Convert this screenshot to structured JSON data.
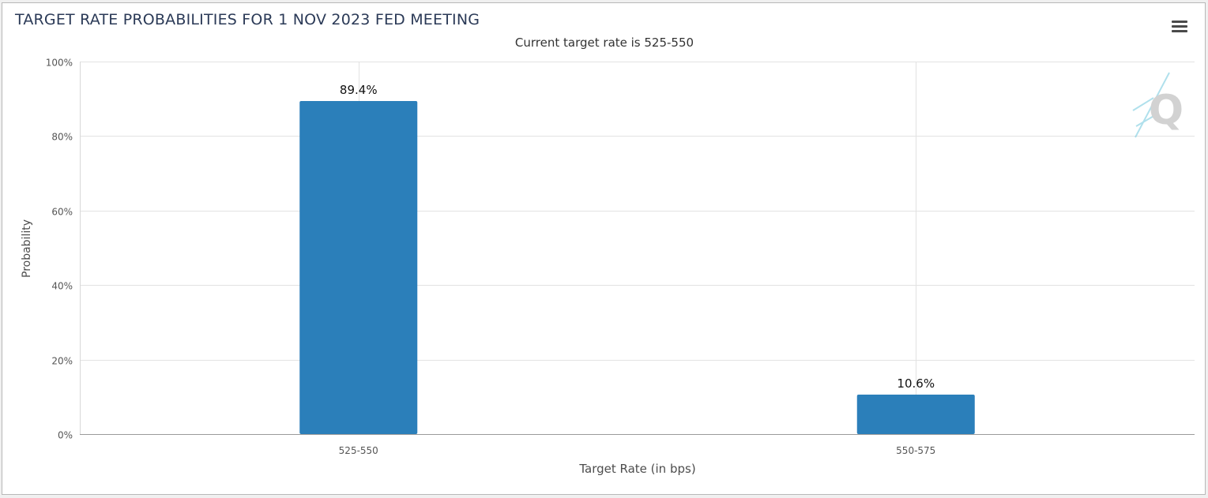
{
  "chart_data": {
    "type": "bar",
    "title": "TARGET RATE PROBABILITIES FOR 1 NOV 2023 FED MEETING",
    "subtitle": "Current target rate is 525-550",
    "xlabel": "Target Rate (in bps)",
    "ylabel": "Probability",
    "categories": [
      "525-550",
      "550-575"
    ],
    "values": [
      89.4,
      10.6
    ],
    "data_labels": [
      "89.4%",
      "10.6%"
    ],
    "ylim": [
      0,
      100
    ],
    "yticks": [
      0,
      20,
      40,
      60,
      80,
      100
    ],
    "ytick_labels": [
      "0%",
      "20%",
      "40%",
      "60%",
      "80%",
      "100%"
    ],
    "grid": true,
    "bar_color": "#2b7fba"
  },
  "toolbar": {
    "menu_icon": "hamburger-menu-icon"
  },
  "watermark": {
    "text": "Q"
  }
}
